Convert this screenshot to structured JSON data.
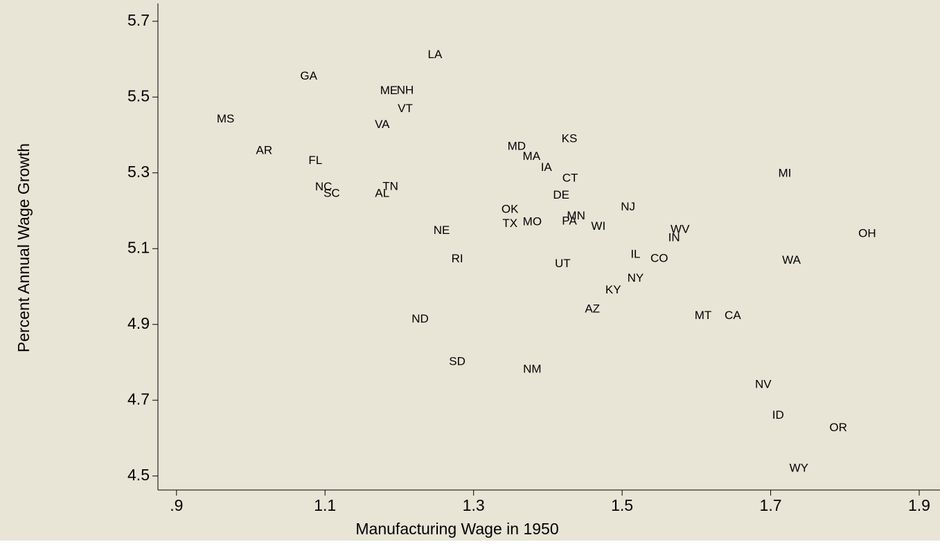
{
  "chart_data": {
    "type": "scatter",
    "xlabel": "Manufacturing Wage in 1950",
    "ylabel": "Percent Annual Wage Growth",
    "labels": [
      "LA",
      "GA",
      "ME",
      "NH",
      "VT",
      "MS",
      "VA",
      "KS",
      "MD",
      "MA",
      "AR",
      "FL",
      "IA",
      "CT",
      "MI",
      "NC",
      "TN",
      "SC",
      "AL",
      "DE",
      "NJ",
      "OK",
      "MN",
      "PA",
      "TX",
      "MO",
      "WI",
      "WV",
      "NE",
      "OH",
      "IN",
      "IL",
      "CO",
      "RI",
      "WA",
      "UT",
      "NY",
      "KY",
      "AZ",
      "ND",
      "MT",
      "CA",
      "SD",
      "NM",
      "NV",
      "ID",
      "OR",
      "WY"
    ],
    "x": [
      1.248,
      1.078,
      1.186,
      1.208,
      1.208,
      0.966,
      1.177,
      1.429,
      1.358,
      1.378,
      1.018,
      1.087,
      1.398,
      1.43,
      1.719,
      1.098,
      1.188,
      1.109,
      1.177,
      1.418,
      1.508,
      1.349,
      1.438,
      1.429,
      1.349,
      1.379,
      1.468,
      1.578,
      1.257,
      1.83,
      1.57,
      1.518,
      1.55,
      1.278,
      1.728,
      1.42,
      1.518,
      1.488,
      1.46,
      1.228,
      1.609,
      1.649,
      1.278,
      1.379,
      1.69,
      1.71,
      1.791,
      1.738
    ],
    "y": [
      5.611,
      5.554,
      5.516,
      5.517,
      5.468,
      5.441,
      5.426,
      5.389,
      5.369,
      5.342,
      5.358,
      5.331,
      5.313,
      5.285,
      5.298,
      5.262,
      5.263,
      5.245,
      5.245,
      5.24,
      5.209,
      5.203,
      5.185,
      5.172,
      5.165,
      5.17,
      5.158,
      5.15,
      5.147,
      5.139,
      5.128,
      5.084,
      5.073,
      5.072,
      5.068,
      5.059,
      5.021,
      4.99,
      4.94,
      4.913,
      4.922,
      4.922,
      4.801,
      4.781,
      4.741,
      4.659,
      4.626,
      4.52
    ],
    "xlim": [
      0.875,
      1.928
    ],
    "ylim": [
      4.463,
      5.747
    ],
    "xticks": [
      {
        "value": 0.9,
        "label": ".9"
      },
      1.1,
      1.3,
      1.5,
      1.7,
      1.9
    ],
    "yticks": [
      4.5,
      4.7,
      4.9,
      5.1,
      5.3,
      5.5,
      5.7
    ],
    "color": "#000000",
    "background": "#e8e4d6"
  }
}
